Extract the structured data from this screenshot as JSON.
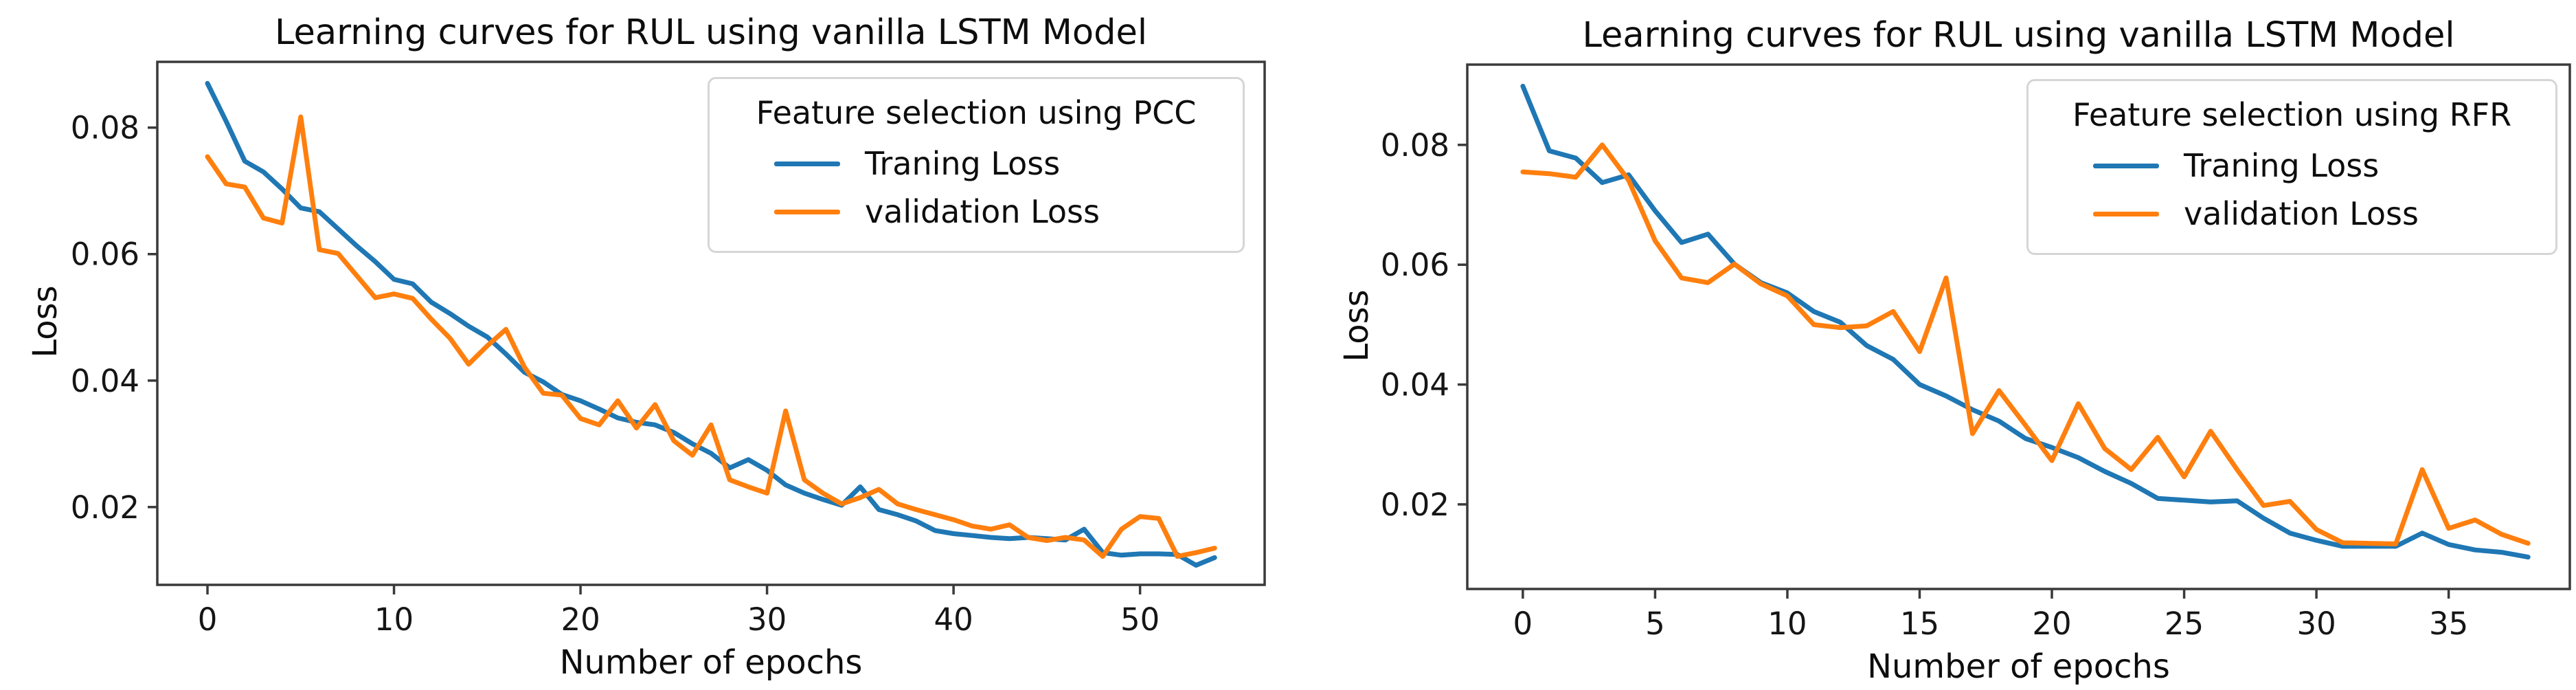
{
  "figure": {
    "ylabel": "Loss",
    "xlabel": "Number of epochs"
  },
  "chart_data": [
    {
      "type": "line",
      "title": "Learning curves for RUL using vanilla LSTM Model",
      "xlabel": "Number of epochs",
      "ylabel": "Loss",
      "legend_title": "Feature selection using PCC",
      "legend_position": "upper right",
      "grid": false,
      "x_is_epoch_index": true,
      "xticks": [
        0,
        10,
        20,
        30,
        40,
        50
      ],
      "xtick_labels": [
        "0",
        "10",
        "20",
        "30",
        "40",
        "50"
      ],
      "yticks": [
        0.02,
        0.04,
        0.06,
        0.08
      ],
      "ytick_labels": [
        "0.02",
        "0.04",
        "0.06",
        "0.08"
      ],
      "xlim": [
        -2.69,
        56.68
      ],
      "ylim": [
        0.0077,
        0.0904
      ],
      "series": [
        {
          "name": "Traning Loss",
          "color": "#1f77b4",
          "values": [
            0.087,
            0.081,
            0.0747,
            0.073,
            0.0703,
            0.0673,
            0.0667,
            0.064,
            0.0613,
            0.0588,
            0.056,
            0.0553,
            0.0524,
            0.0506,
            0.0486,
            0.0469,
            0.0442,
            0.0413,
            0.0398,
            0.0378,
            0.0368,
            0.0355,
            0.0341,
            0.0334,
            0.033,
            0.0318,
            0.03,
            0.0285,
            0.0262,
            0.0275,
            0.0258,
            0.0235,
            0.0222,
            0.0212,
            0.0203,
            0.0232,
            0.0196,
            0.0188,
            0.0178,
            0.0163,
            0.0158,
            0.0155,
            0.0152,
            0.015,
            0.0152,
            0.015,
            0.0148,
            0.0165,
            0.0128,
            0.0124,
            0.0126,
            0.0126,
            0.0125,
            0.0108,
            0.012
          ]
        },
        {
          "name": "validation Loss",
          "color": "#ff7f0e",
          "values": [
            0.0754,
            0.0711,
            0.0706,
            0.0657,
            0.0649,
            0.0817,
            0.0607,
            0.0601,
            0.0566,
            0.0531,
            0.0537,
            0.053,
            0.0497,
            0.0467,
            0.0426,
            0.0455,
            0.0481,
            0.0421,
            0.038,
            0.0377,
            0.034,
            0.033,
            0.0368,
            0.0325,
            0.0362,
            0.0305,
            0.0282,
            0.033,
            0.0243,
            0.0232,
            0.0222,
            0.0352,
            0.0243,
            0.0222,
            0.0205,
            0.0215,
            0.0228,
            0.0205,
            0.0196,
            0.0188,
            0.018,
            0.017,
            0.0165,
            0.0172,
            0.0152,
            0.0147,
            0.0152,
            0.0148,
            0.0122,
            0.0165,
            0.0185,
            0.0182,
            0.0122,
            0.0128,
            0.0135
          ]
        }
      ]
    },
    {
      "type": "line",
      "title": "Learning curves for RUL using vanilla LSTM Model",
      "xlabel": "Number of epochs",
      "ylabel": "Loss",
      "legend_title": "Feature selection using RFR",
      "legend_position": "upper right",
      "grid": false,
      "x_is_epoch_index": true,
      "xticks": [
        0,
        5,
        10,
        15,
        20,
        25,
        30,
        35
      ],
      "xtick_labels": [
        "0",
        "5",
        "10",
        "15",
        "20",
        "25",
        "30",
        "35"
      ],
      "yticks": [
        0.02,
        0.04,
        0.06,
        0.08
      ],
      "ytick_labels": [
        "0.02",
        "0.04",
        "0.06",
        "0.08"
      ],
      "xlim": [
        -2.1,
        39.58
      ],
      "ylim": [
        0.00588,
        0.0934
      ],
      "series": [
        {
          "name": "Traning Loss",
          "color": "#1f77b4",
          "values": [
            0.0898,
            0.079,
            0.0778,
            0.0737,
            0.075,
            0.069,
            0.0637,
            0.0651,
            0.0601,
            0.057,
            0.0553,
            0.0522,
            0.0504,
            0.0465,
            0.0442,
            0.04,
            0.0381,
            0.0358,
            0.0339,
            0.031,
            0.0295,
            0.0278,
            0.0255,
            0.0235,
            0.021,
            0.0207,
            0.0204,
            0.0206,
            0.0177,
            0.0152,
            0.014,
            0.013,
            0.013,
            0.013,
            0.0152,
            0.0133,
            0.0124,
            0.012,
            0.0112
          ]
        },
        {
          "name": "validation Loss",
          "color": "#ff7f0e",
          "values": [
            0.0755,
            0.0752,
            0.0746,
            0.08,
            0.0741,
            0.064,
            0.0578,
            0.057,
            0.0601,
            0.0568,
            0.0548,
            0.05,
            0.0495,
            0.0498,
            0.0522,
            0.0455,
            0.0578,
            0.0318,
            0.039,
            0.0332,
            0.0273,
            0.0368,
            0.0293,
            0.0258,
            0.0312,
            0.0246,
            0.0322,
            0.0258,
            0.0198,
            0.0205,
            0.0158,
            0.0136,
            0.0135,
            0.0134,
            0.0258,
            0.016,
            0.0174,
            0.015,
            0.0135
          ]
        }
      ]
    }
  ]
}
